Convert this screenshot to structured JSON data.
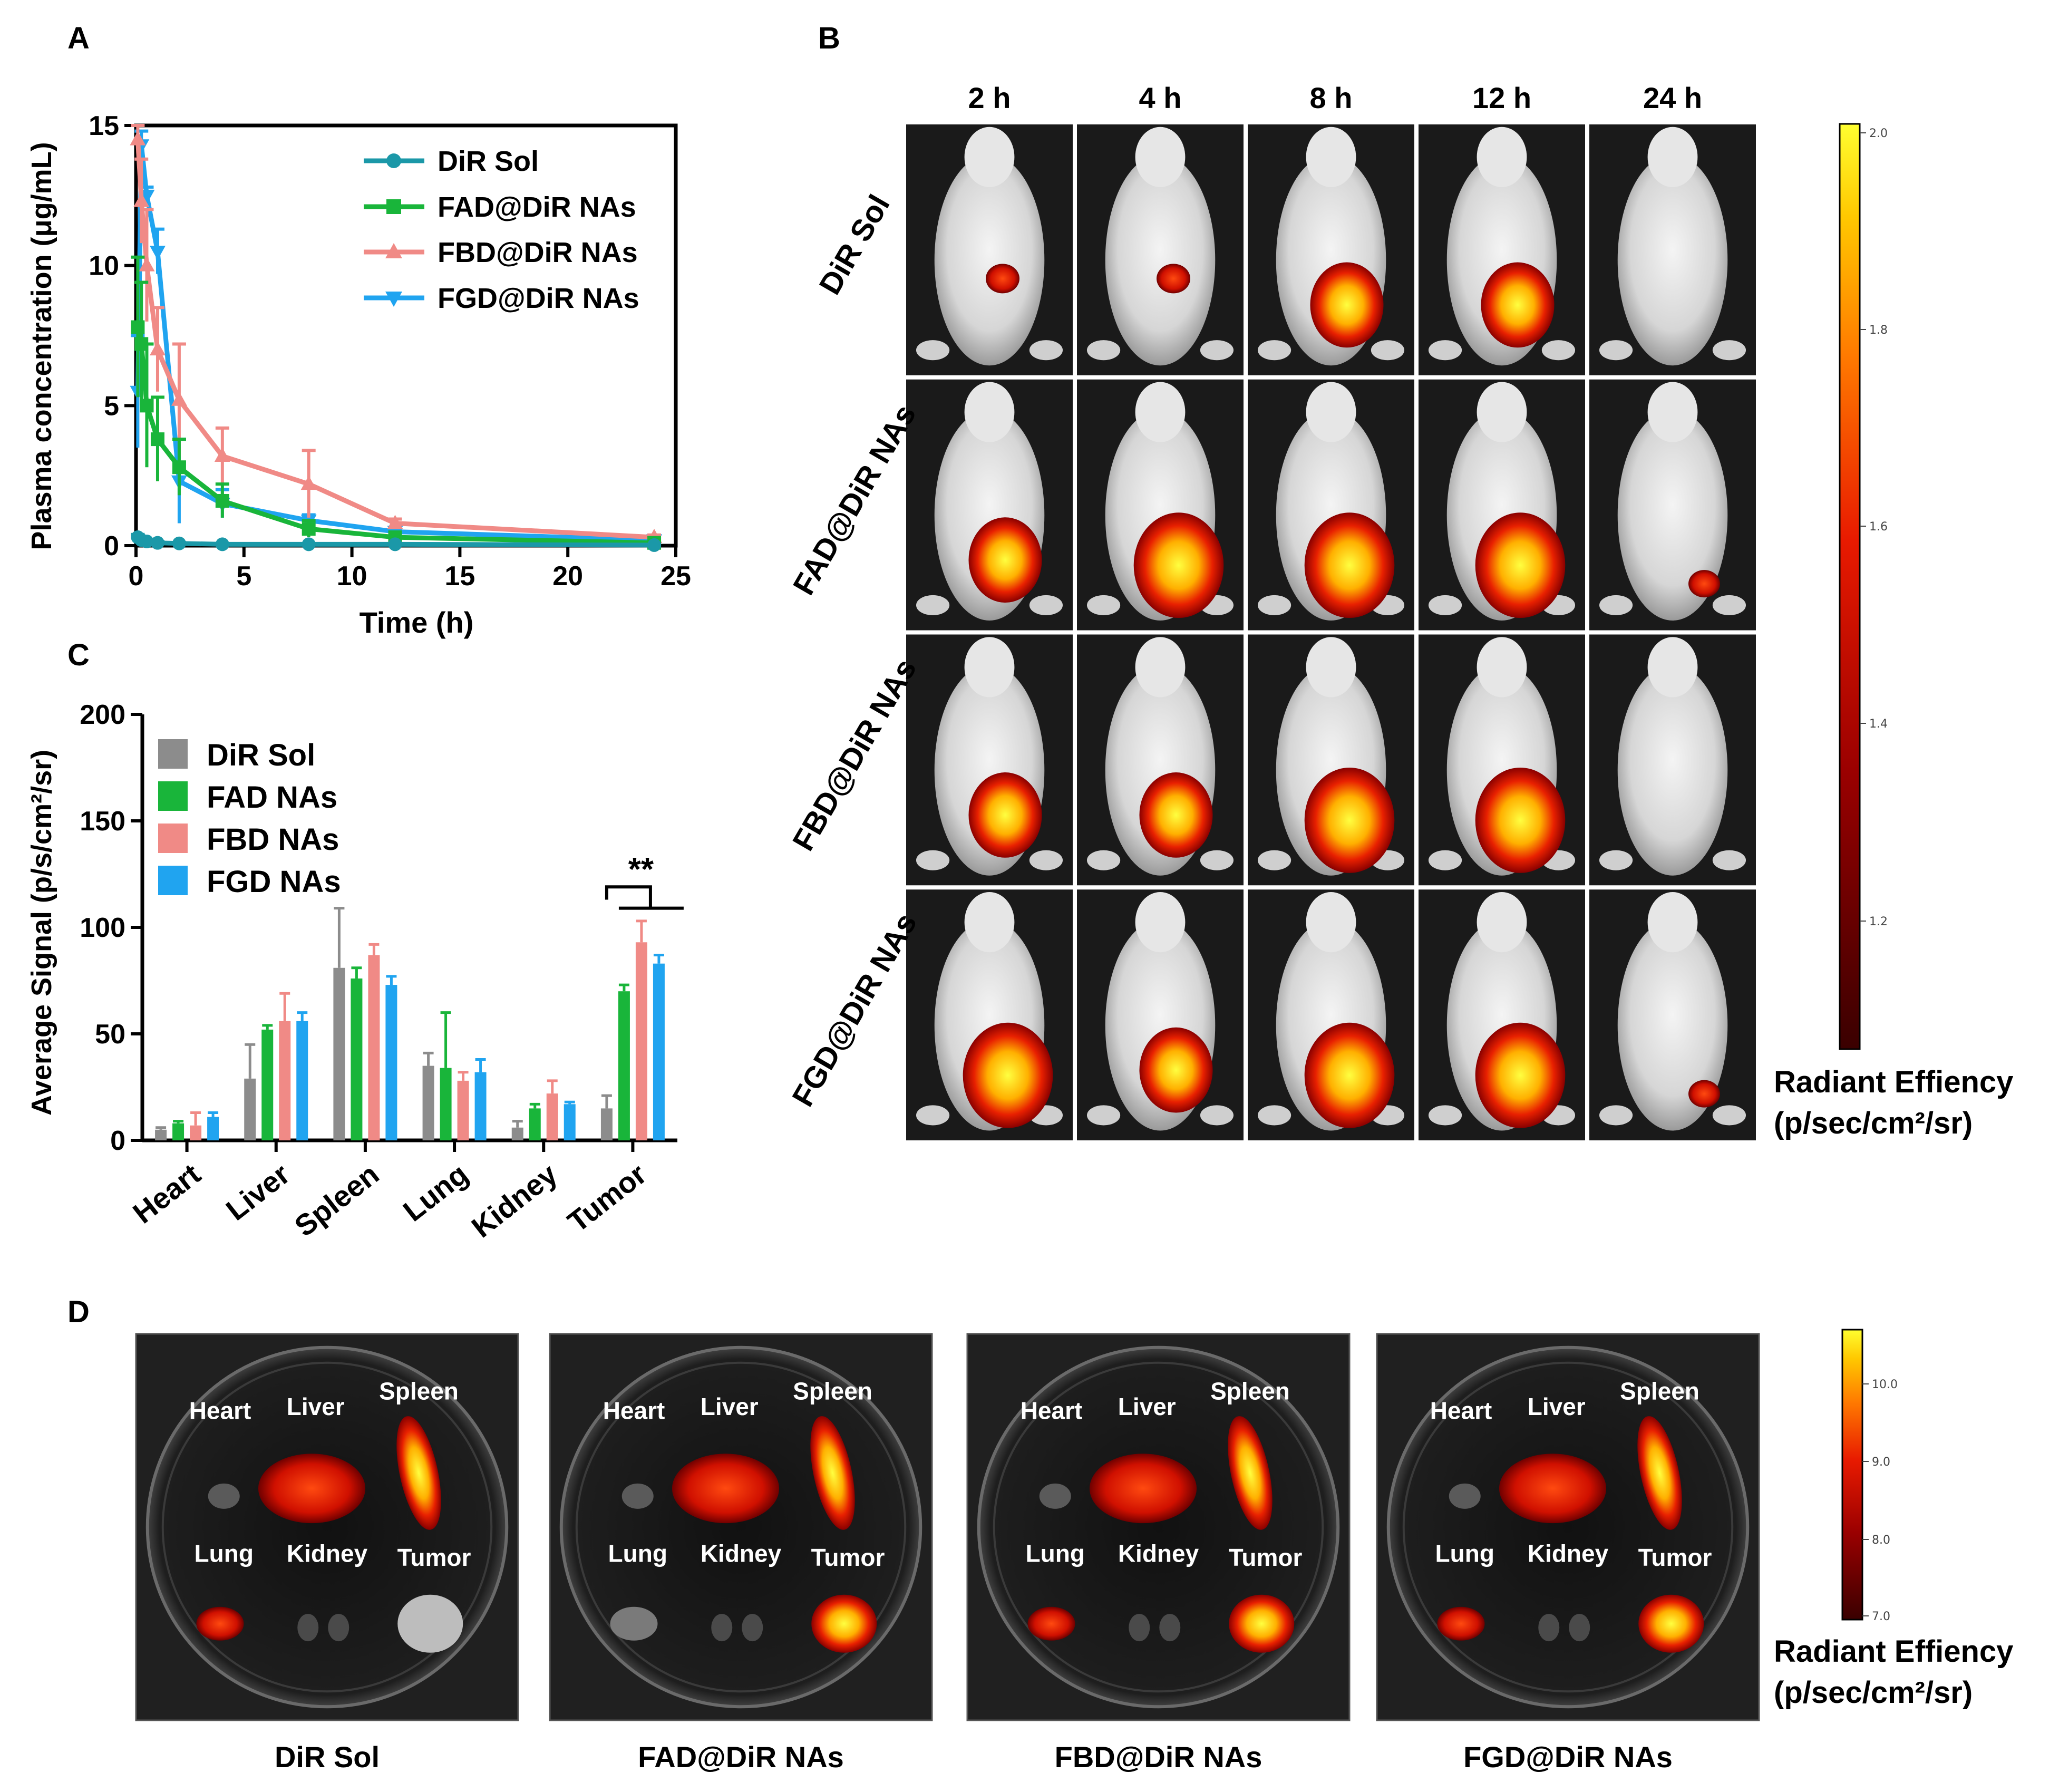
{
  "panels": {
    "A": "A",
    "B": "B",
    "C": "C",
    "D": "D"
  },
  "colors": {
    "dir_sol": "#1b98a8",
    "fad": "#19b53a",
    "fbd": "#f08a86",
    "fgd": "#20a4f0",
    "gray": "#8c8c8c"
  },
  "chart_data": [
    {
      "type": "line",
      "panel": "A",
      "title": "",
      "xlabel": "Time (h)",
      "ylabel": "Plasma concentration (μg/mL)",
      "xlim": [
        0,
        25
      ],
      "ylim": [
        0,
        15
      ],
      "xticks": [
        "0",
        "5",
        "10",
        "15",
        "20",
        "25"
      ],
      "yticks": [
        "0",
        "5",
        "10",
        "15"
      ],
      "legend_position": "top-right",
      "series": [
        {
          "name": "DiR Sol",
          "x": [
            0.083,
            0.25,
            0.5,
            1,
            2,
            4,
            8,
            12,
            24
          ],
          "y": [
            0.3,
            0.2,
            0.15,
            0.1,
            0.08,
            0.05,
            0.05,
            0.05,
            0.02
          ],
          "err": [
            0.1,
            0.05,
            0.05,
            0.05,
            0.03,
            0.02,
            0.02,
            0.02,
            0.01
          ]
        },
        {
          "name": "FAD@DiR NAs",
          "x": [
            0.083,
            0.25,
            0.5,
            1,
            2,
            4,
            8,
            12,
            24
          ],
          "y": [
            7.8,
            7.2,
            5.0,
            3.8,
            2.8,
            1.6,
            0.6,
            0.3,
            0.1
          ],
          "err": [
            2.5,
            2.2,
            2.2,
            1.5,
            1.0,
            0.6,
            0.3,
            0.15,
            0.05
          ]
        },
        {
          "name": "FBD@DiR NAs",
          "x": [
            0.083,
            0.25,
            0.5,
            1,
            2,
            4,
            8,
            12,
            24
          ],
          "y": [
            14.5,
            12.3,
            10.0,
            7.0,
            5.2,
            3.2,
            2.2,
            0.8,
            0.3
          ],
          "err": [
            0.5,
            1.5,
            2.0,
            1.5,
            2.0,
            1.0,
            1.2,
            0.15,
            0.08
          ]
        },
        {
          "name": "FGD@DiR NAs",
          "x": [
            0.083,
            0.25,
            0.5,
            1,
            2,
            4,
            8,
            12,
            24
          ],
          "y": [
            5.5,
            14.3,
            12.5,
            10.5,
            2.3,
            1.5,
            0.9,
            0.5,
            0.2
          ],
          "err": [
            2.0,
            0.5,
            0.3,
            0.8,
            1.5,
            0.5,
            0.2,
            0.1,
            0.05
          ]
        }
      ]
    },
    {
      "type": "bar",
      "panel": "C",
      "title": "",
      "xlabel": "",
      "ylabel": "Average Signal (p/s/cm²/sr)",
      "ylim": [
        0,
        200
      ],
      "yticks": [
        "0",
        "50",
        "100",
        "150",
        "200"
      ],
      "categories": [
        "Heart",
        "Liver",
        "Spleen",
        "Lung",
        "Kidney",
        "Tumor"
      ],
      "legend_position": "top-left",
      "series": [
        {
          "name": "DiR Sol",
          "values": [
            5,
            29,
            81,
            35,
            6,
            15
          ],
          "err": [
            1,
            16,
            28,
            6,
            3,
            6
          ]
        },
        {
          "name": "FAD NAs",
          "values": [
            8,
            52,
            76,
            34,
            15,
            70
          ],
          "err": [
            1,
            2,
            5,
            26,
            2,
            3
          ]
        },
        {
          "name": "FBD NAs",
          "values": [
            7,
            56,
            87,
            28,
            22,
            93
          ],
          "err": [
            6,
            13,
            5,
            4,
            6,
            10
          ]
        },
        {
          "name": "FGD NAs",
          "values": [
            11,
            56,
            73,
            32,
            17,
            83
          ],
          "err": [
            2,
            4,
            4,
            6,
            1,
            4
          ]
        }
      ],
      "annotation": "**"
    }
  ],
  "panel_b": {
    "timepoints": [
      "2 h",
      "4 h",
      "8 h",
      "12 h",
      "24 h"
    ],
    "rows": [
      "DiR Sol",
      "FAD@DiR NAs",
      "FBD@DiR NAs",
      "FGD@DiR NAs"
    ],
    "colorbar": {
      "ticks": [
        "2.0",
        "1.8",
        "1.6",
        "1.4",
        "1.2"
      ],
      "label_line1": "Radiant Effiency",
      "label_line2": "(p/sec/cm²/sr)"
    }
  },
  "panel_d": {
    "dishes": [
      "DiR Sol",
      "FAD@DiR NAs",
      "FBD@DiR NAs",
      "FGD@DiR NAs"
    ],
    "organ_labels": {
      "heart": "Heart",
      "liver": "Liver",
      "spleen": "Spleen",
      "lung": "Lung",
      "kidney": "Kidney",
      "tumor": "Tumor"
    },
    "colorbar": {
      "ticks": [
        "10.0",
        "9.0",
        "8.0",
        "7.0"
      ],
      "label_line1": "Radiant Effiency",
      "label_line2": "(p/sec/cm²/sr)"
    }
  }
}
